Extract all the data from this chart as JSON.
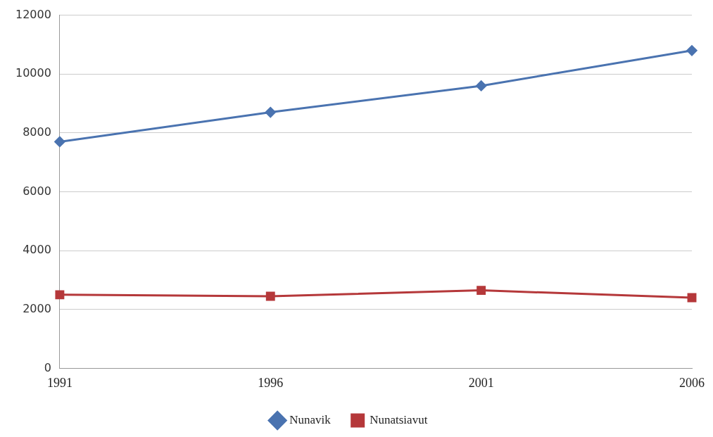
{
  "chart_data": {
    "type": "line",
    "categories": [
      "1991",
      "1996",
      "2001",
      "2006"
    ],
    "series": [
      {
        "name": "Nunavik",
        "color": "#4a73b0",
        "marker": "diamond",
        "values": [
          7700,
          8700,
          9600,
          10800
        ]
      },
      {
        "name": "Nunatsiavut",
        "color": "#b5383a",
        "marker": "square",
        "values": [
          2500,
          2450,
          2650,
          2400
        ]
      }
    ],
    "ylim": [
      0,
      12000
    ],
    "yticks": [
      0,
      2000,
      4000,
      6000,
      8000,
      10000,
      12000
    ],
    "grid": "y",
    "legend": "bottom"
  }
}
